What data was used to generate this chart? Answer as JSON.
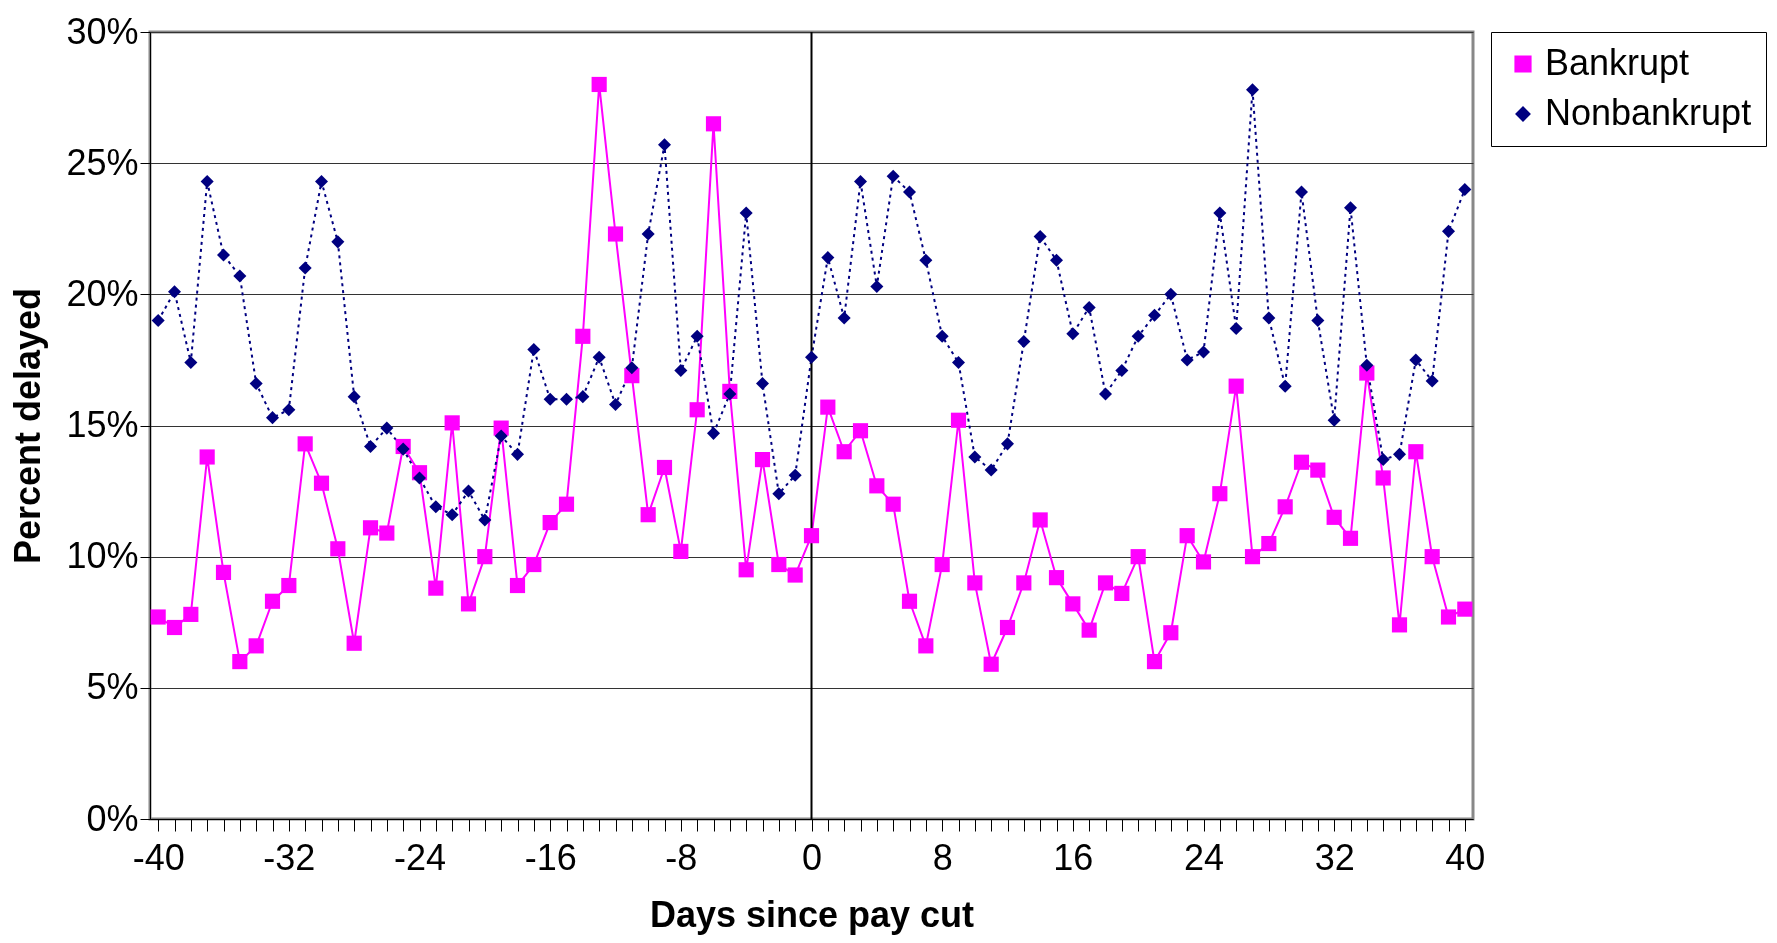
{
  "chart_data": {
    "type": "line",
    "xlabel": "Days since pay cut",
    "ylabel": "Percent delayed",
    "x": [
      -40,
      -39,
      -38,
      -37,
      -36,
      -35,
      -34,
      -33,
      -32,
      -31,
      -30,
      -29,
      -28,
      -27,
      -26,
      -25,
      -24,
      -23,
      -22,
      -21,
      -20,
      -19,
      -18,
      -17,
      -16,
      -15,
      -14,
      -13,
      -12,
      -11,
      -10,
      -9,
      -8,
      -7,
      -6,
      -5,
      -4,
      -3,
      -2,
      -1,
      0,
      1,
      2,
      3,
      4,
      5,
      6,
      7,
      8,
      9,
      10,
      11,
      12,
      13,
      14,
      15,
      16,
      17,
      18,
      19,
      20,
      21,
      22,
      23,
      24,
      25,
      26,
      27,
      28,
      29,
      30,
      31,
      32,
      33,
      34,
      35,
      36,
      37,
      38,
      39,
      40
    ],
    "series": [
      {
        "name": "Bankrupt",
        "color": "#ff00ff",
        "marker": "square",
        "line_style": "solid",
        "values": [
          7.7,
          7.3,
          7.8,
          13.8,
          9.4,
          6.0,
          6.6,
          8.3,
          8.9,
          14.3,
          12.8,
          10.3,
          6.7,
          11.1,
          10.9,
          14.2,
          13.2,
          8.8,
          15.1,
          8.2,
          10.0,
          14.9,
          8.9,
          9.7,
          11.3,
          12.0,
          18.4,
          28.0,
          22.3,
          16.9,
          11.6,
          13.4,
          10.2,
          15.6,
          26.5,
          16.3,
          9.5,
          13.7,
          9.7,
          9.3,
          10.8,
          15.7,
          14.0,
          14.8,
          12.7,
          12.0,
          8.3,
          6.6,
          9.7,
          15.2,
          9.0,
          5.9,
          7.3,
          9.0,
          11.4,
          9.2,
          8.2,
          7.2,
          9.0,
          8.6,
          10.0,
          6.0,
          7.1,
          10.8,
          9.8,
          12.4,
          16.5,
          10.0,
          10.5,
          11.9,
          13.6,
          13.3,
          11.5,
          10.7,
          17.0,
          13.0,
          7.4,
          14.0,
          10.0,
          7.7,
          8.0
        ]
      },
      {
        "name": "Nonbankrupt",
        "color": "#000080",
        "marker": "diamond",
        "line_style": "dotted",
        "values": [
          19.0,
          20.1,
          17.4,
          24.3,
          21.5,
          20.7,
          16.6,
          15.3,
          15.6,
          21.0,
          24.3,
          22.0,
          16.1,
          14.2,
          14.9,
          14.1,
          13.0,
          11.9,
          11.6,
          12.5,
          11.4,
          14.6,
          13.9,
          17.9,
          16.0,
          16.0,
          16.1,
          17.6,
          15.8,
          17.2,
          22.3,
          25.7,
          17.1,
          18.4,
          14.7,
          16.2,
          23.1,
          16.6,
          12.4,
          13.1,
          17.6,
          21.4,
          19.1,
          24.3,
          20.3,
          24.5,
          23.9,
          21.3,
          18.4,
          17.4,
          13.8,
          13.3,
          14.3,
          18.2,
          22.2,
          21.3,
          18.5,
          19.5,
          16.2,
          17.1,
          18.4,
          19.2,
          20.0,
          17.5,
          17.8,
          23.1,
          18.7,
          27.8,
          19.1,
          16.5,
          23.9,
          19.0,
          15.2,
          23.3,
          17.3,
          13.7,
          13.9,
          17.5,
          16.7,
          22.4,
          24.0
        ]
      }
    ],
    "xlim": [
      -40.5,
      40.5
    ],
    "xticks": [
      -40,
      {
        "value": -39,
        "label": null
      },
      {
        "value": -38,
        "label": null
      },
      {
        "value": -37,
        "label": null
      },
      {
        "value": -36,
        "label": null
      },
      {
        "value": -35,
        "label": null
      },
      {
        "value": -34,
        "label": null
      },
      {
        "value": -33,
        "label": null
      },
      -32,
      {
        "value": -31,
        "label": null
      },
      {
        "value": -30,
        "label": null
      },
      {
        "value": -29,
        "label": null
      },
      {
        "value": -28,
        "label": null
      },
      {
        "value": -27,
        "label": null
      },
      {
        "value": -26,
        "label": null
      },
      {
        "value": -25,
        "label": null
      },
      -24,
      {
        "value": -23,
        "label": null
      },
      {
        "value": -22,
        "label": null
      },
      {
        "value": -21,
        "label": null
      },
      {
        "value": -20,
        "label": null
      },
      {
        "value": -19,
        "label": null
      },
      {
        "value": -18,
        "label": null
      },
      {
        "value": -17,
        "label": null
      },
      -16,
      {
        "value": -15,
        "label": null
      },
      {
        "value": -14,
        "label": null
      },
      {
        "value": -13,
        "label": null
      },
      {
        "value": -12,
        "label": null
      },
      {
        "value": -11,
        "label": null
      },
      {
        "value": -10,
        "label": null
      },
      {
        "value": -9,
        "label": null
      },
      -8,
      {
        "value": -7,
        "label": null
      },
      {
        "value": -6,
        "label": null
      },
      {
        "value": -5,
        "label": null
      },
      {
        "value": -4,
        "label": null
      },
      {
        "value": -3,
        "label": null
      },
      {
        "value": -2,
        "label": null
      },
      {
        "value": -1,
        "label": null
      },
      0,
      {
        "value": 1,
        "label": null
      },
      {
        "value": 2,
        "label": null
      },
      {
        "value": 3,
        "label": null
      },
      {
        "value": 4,
        "label": null
      },
      {
        "value": 5,
        "label": null
      },
      {
        "value": 6,
        "label": null
      },
      {
        "value": 7,
        "label": null
      },
      8,
      {
        "value": 9,
        "label": null
      },
      {
        "value": 10,
        "label": null
      },
      {
        "value": 11,
        "label": null
      },
      {
        "value": 12,
        "label": null
      },
      {
        "value": 13,
        "label": null
      },
      {
        "value": 14,
        "label": null
      },
      {
        "value": 15,
        "label": null
      },
      16,
      {
        "value": 17,
        "label": null
      },
      {
        "value": 18,
        "label": null
      },
      {
        "value": 19,
        "label": null
      },
      {
        "value": 20,
        "label": null
      },
      {
        "value": 21,
        "label": null
      },
      {
        "value": 22,
        "label": null
      },
      {
        "value": 23,
        "label": null
      },
      24,
      {
        "value": 25,
        "label": null
      },
      {
        "value": 26,
        "label": null
      },
      {
        "value": 27,
        "label": null
      },
      {
        "value": 28,
        "label": null
      },
      {
        "value": 29,
        "label": null
      },
      {
        "value": 30,
        "label": null
      },
      {
        "value": 31,
        "label": null
      },
      32,
      {
        "value": 33,
        "label": null
      },
      {
        "value": 34,
        "label": null
      },
      {
        "value": 35,
        "label": null
      },
      {
        "value": 36,
        "label": null
      },
      {
        "value": 37,
        "label": null
      },
      {
        "value": 38,
        "label": null
      },
      {
        "value": 39,
        "label": null
      },
      40
    ],
    "ylim": [
      0,
      30
    ],
    "yticks": [
      {
        "value": 0,
        "label": "0%"
      },
      {
        "value": 5,
        "label": "5%"
      },
      {
        "value": 10,
        "label": "10%"
      },
      {
        "value": 15,
        "label": "15%"
      },
      {
        "value": 20,
        "label": "20%"
      },
      {
        "value": 25,
        "label": "25%"
      },
      {
        "value": 30,
        "label": "30%"
      }
    ],
    "ref_lines": [
      {
        "axis": "x",
        "value": 0,
        "color": "#000000"
      }
    ],
    "grid": "y",
    "legend": "right"
  }
}
